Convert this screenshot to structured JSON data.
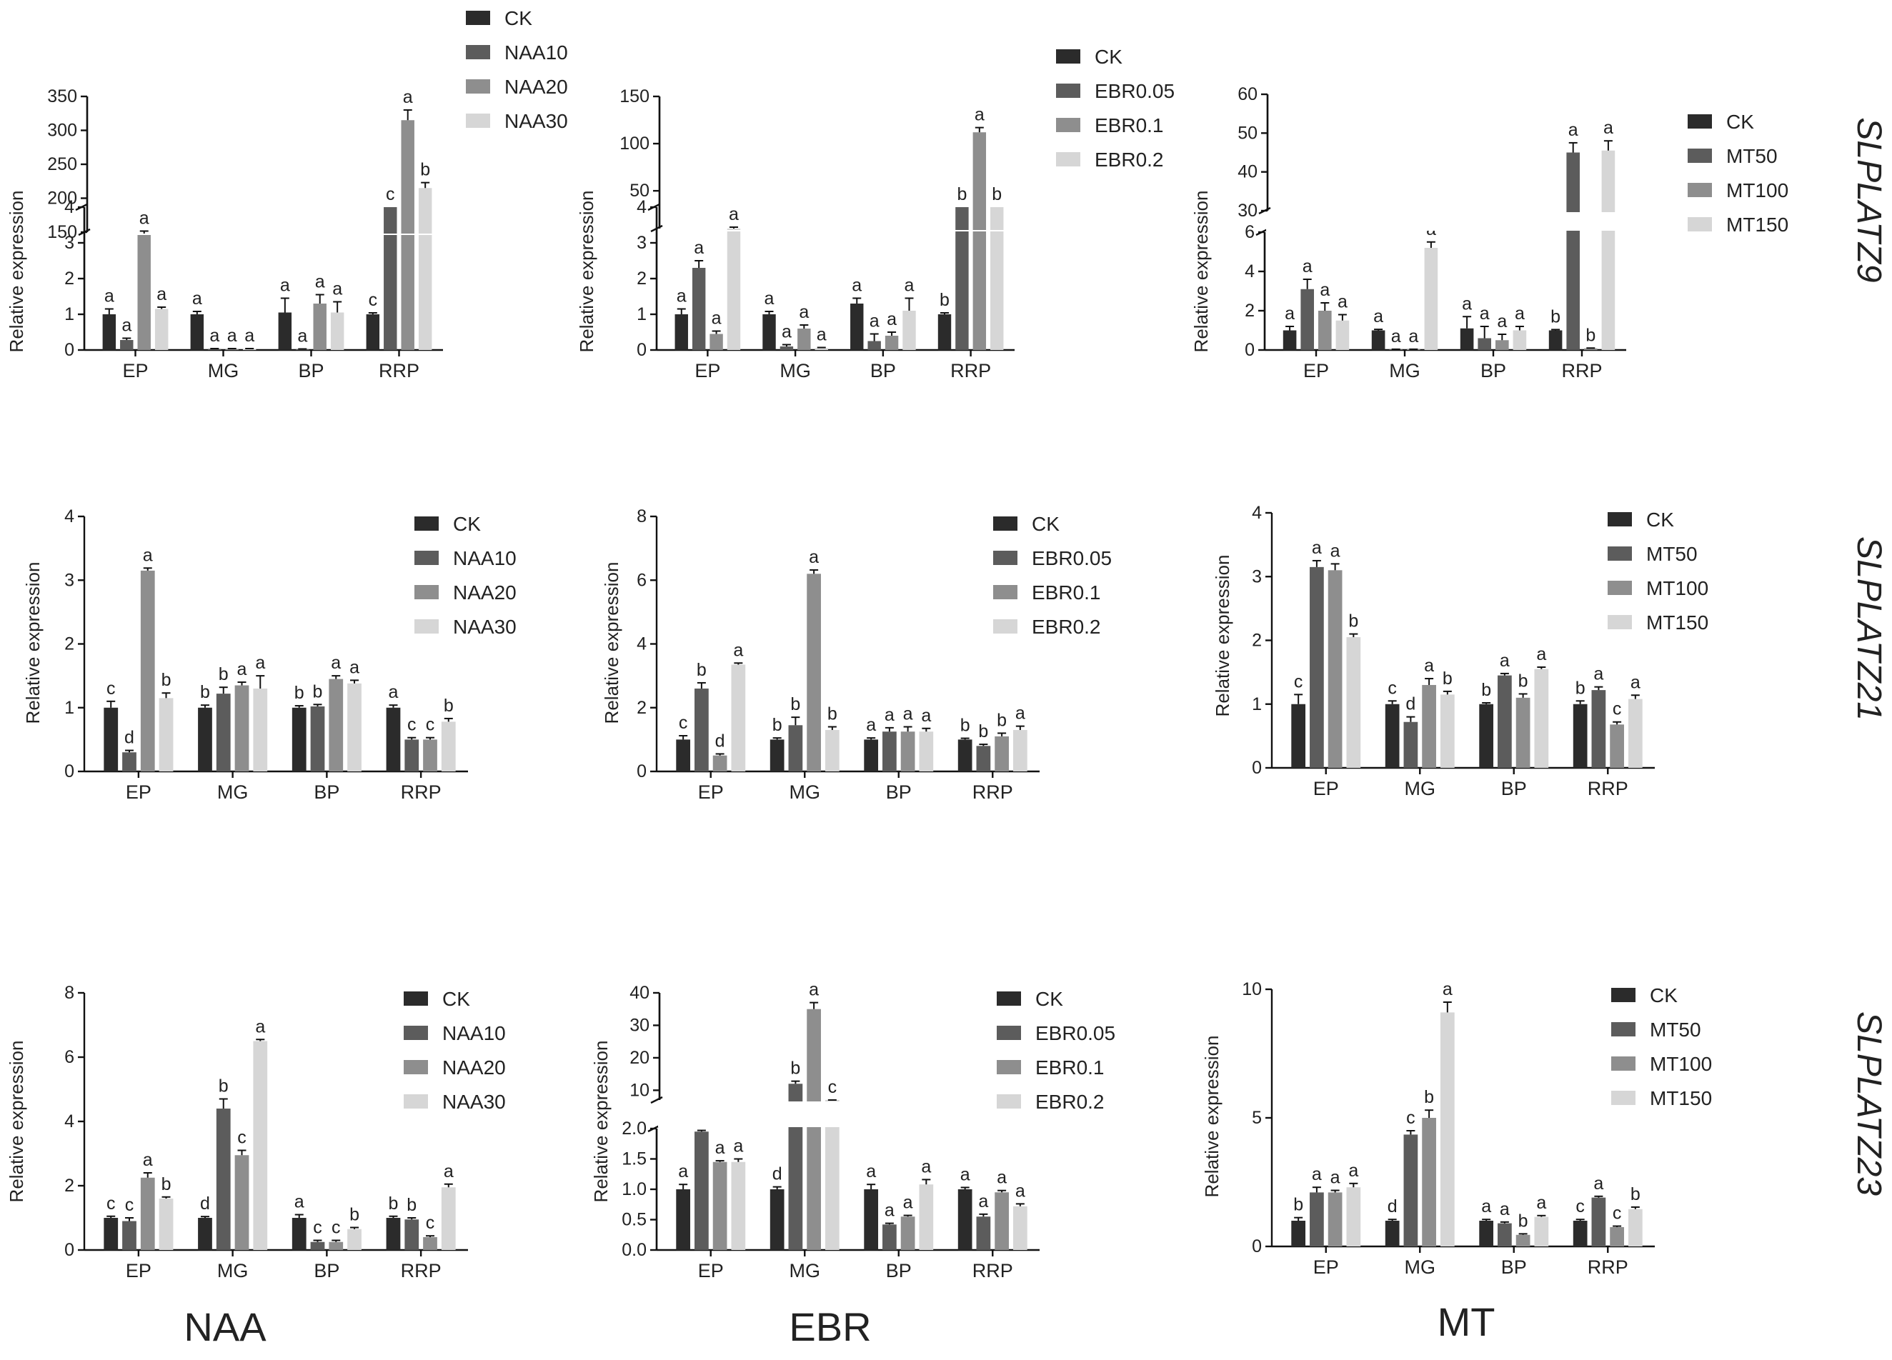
{
  "figure": {
    "column_titles": [
      "NAA",
      "EBR",
      "MT"
    ],
    "row_titles": [
      "SLPLATZ9",
      "SLPLATZ21",
      "SLPLATZ23"
    ]
  },
  "colors": {
    "series": [
      "#2b2b2b",
      "#5c5c5c",
      "#8e8e8e",
      "#d6d6d6"
    ],
    "axis": "#111111",
    "text": "#222222"
  },
  "chart_data": [
    {
      "type": "bar",
      "gene": "SLPLATZ9",
      "treatment": "NAA",
      "categories": [
        "EP",
        "MG",
        "BP",
        "RRP"
      ],
      "ylabel": "Relative expression",
      "legend": [
        "CK",
        "NAA10",
        "NAA20",
        "NAA30"
      ],
      "axis_break": true,
      "lower_ylim": [
        0,
        4
      ],
      "lower_ticks": [
        "0",
        "1",
        "2",
        "3",
        "4"
      ],
      "upper_ylim": [
        150,
        350
      ],
      "upper_ticks": [
        "150",
        "200",
        "250",
        "300",
        "350"
      ],
      "series": [
        {
          "name": "CK",
          "values": [
            1.0,
            1.0,
            1.05,
            1.0
          ],
          "errors": [
            0.15,
            0.08,
            0.4,
            0.04
          ],
          "letters": [
            "a",
            "a",
            "a",
            "c"
          ]
        },
        {
          "name": "NAA10",
          "values": [
            0.28,
            0.03,
            0.02,
            4
          ],
          "errors": [
            0.05,
            0.01,
            0.01,
            0
          ],
          "letters": [
            "a",
            "a",
            "a",
            "c"
          ]
        },
        {
          "name": "NAA20",
          "values": [
            3.25,
            0.03,
            1.3,
            315
          ],
          "errors": [
            0.08,
            0.01,
            0.25,
            15
          ],
          "letters": [
            "a",
            "a",
            "a",
            "a"
          ]
        },
        {
          "name": "NAA30",
          "values": [
            1.15,
            0.03,
            1.05,
            215
          ],
          "errors": [
            0.05,
            0.01,
            0.3,
            8
          ],
          "letters": [
            "a",
            "a",
            "a",
            "b"
          ]
        }
      ]
    },
    {
      "type": "bar",
      "gene": "SLPLATZ9",
      "treatment": "EBR",
      "categories": [
        "EP",
        "MG",
        "BP",
        "RRP"
      ],
      "ylabel": "Relative expression",
      "legend": [
        "CK",
        "EBR0.05",
        "EBR0.1",
        "EBR0.2"
      ],
      "axis_break": true,
      "lower_ylim": [
        0,
        4
      ],
      "lower_ticks": [
        "0",
        "1",
        "2",
        "3",
        "4"
      ],
      "upper_ylim": [
        10,
        150
      ],
      "upper_ticks": [
        "50",
        "100",
        "150"
      ],
      "series": [
        {
          "name": "CK",
          "values": [
            1.0,
            1.0,
            1.3,
            1.0
          ],
          "errors": [
            0.15,
            0.08,
            0.15,
            0.04
          ],
          "letters": [
            "a",
            "a",
            "a",
            "b"
          ]
        },
        {
          "name": "EBR0.05",
          "values": [
            2.3,
            0.1,
            0.25,
            4
          ],
          "errors": [
            0.2,
            0.05,
            0.2,
            0
          ],
          "letters": [
            "a",
            "a",
            "a",
            "b"
          ]
        },
        {
          "name": "EBR0.1",
          "values": [
            0.45,
            0.6,
            0.4,
            112
          ],
          "errors": [
            0.08,
            0.1,
            0.1,
            5
          ],
          "letters": [
            "a",
            "a",
            "a",
            "a"
          ]
        },
        {
          "name": "EBR0.2",
          "values": [
            3.4,
            0.05,
            1.1,
            4
          ],
          "errors": [
            0.04,
            0.02,
            0.35,
            0
          ],
          "letters": [
            "a",
            "a",
            "a",
            "b"
          ]
        }
      ]
    },
    {
      "type": "bar",
      "gene": "SLPLATZ9",
      "treatment": "MT",
      "categories": [
        "EP",
        "MG",
        "BP",
        "RRP"
      ],
      "ylabel": "Relative expression",
      "legend": [
        "CK",
        "MT50",
        "MT100",
        "MT150"
      ],
      "axis_break": true,
      "lower_ylim": [
        0,
        6
      ],
      "lower_ticks": [
        "0",
        "2",
        "4",
        "6"
      ],
      "upper_ylim": [
        30,
        60
      ],
      "upper_ticks": [
        "30",
        "40",
        "50",
        "60"
      ],
      "series": [
        {
          "name": "CK",
          "values": [
            1.0,
            1.0,
            1.1,
            1.0
          ],
          "errors": [
            0.2,
            0.05,
            0.6,
            0.04
          ],
          "letters": [
            "a",
            "a",
            "a",
            "b"
          ]
        },
        {
          "name": "MT50",
          "values": [
            3.1,
            0.03,
            0.6,
            45
          ],
          "errors": [
            0.5,
            0.01,
            0.6,
            2.5
          ],
          "letters": [
            "a",
            "a",
            "a",
            "a"
          ]
        },
        {
          "name": "MT100",
          "values": [
            2.0,
            0.03,
            0.5,
            0.08
          ],
          "errors": [
            0.4,
            0.01,
            0.3,
            0.02
          ],
          "letters": [
            "a",
            "a",
            "a",
            "b"
          ]
        },
        {
          "name": "MT150",
          "values": [
            1.5,
            5.2,
            1.0,
            45.5
          ],
          "errors": [
            0.3,
            0.3,
            0.2,
            2.5
          ],
          "letters": [
            "a",
            "a",
            "a",
            "a"
          ]
        }
      ]
    },
    {
      "type": "bar",
      "gene": "SLPLATZ21",
      "treatment": "NAA",
      "categories": [
        "EP",
        "MG",
        "BP",
        "RRP"
      ],
      "ylabel": "Relative expression",
      "legend": [
        "CK",
        "NAA10",
        "NAA20",
        "NAA30"
      ],
      "axis_break": false,
      "ylim": [
        0,
        4
      ],
      "yticks": [
        "0",
        "1",
        "2",
        "3",
        "4"
      ],
      "series": [
        {
          "name": "CK",
          "values": [
            1.0,
            1.0,
            1.0,
            1.0
          ],
          "errors": [
            0.1,
            0.04,
            0.03,
            0.04
          ],
          "letters": [
            "c",
            "b",
            "b",
            "a"
          ]
        },
        {
          "name": "NAA10",
          "values": [
            0.3,
            1.22,
            1.02,
            0.5
          ],
          "errors": [
            0.03,
            0.1,
            0.03,
            0.03
          ],
          "letters": [
            "d",
            "b",
            "b",
            "c"
          ]
        },
        {
          "name": "NAA20",
          "values": [
            3.15,
            1.35,
            1.45,
            0.5
          ],
          "errors": [
            0.04,
            0.05,
            0.05,
            0.03
          ],
          "letters": [
            "a",
            "a",
            "a",
            "c"
          ]
        },
        {
          "name": "NAA30",
          "values": [
            1.15,
            1.3,
            1.38,
            0.78
          ],
          "errors": [
            0.08,
            0.2,
            0.05,
            0.05
          ],
          "letters": [
            "b",
            "a",
            "a",
            "b"
          ]
        }
      ]
    },
    {
      "type": "bar",
      "gene": "SLPLATZ21",
      "treatment": "EBR",
      "categories": [
        "EP",
        "MG",
        "BP",
        "RRP"
      ],
      "ylabel": "Relative expression",
      "legend": [
        "CK",
        "EBR0.05",
        "EBR0.1",
        "EBR0.2"
      ],
      "axis_break": false,
      "ylim": [
        0,
        8
      ],
      "yticks": [
        "0",
        "2",
        "4",
        "6",
        "8"
      ],
      "series": [
        {
          "name": "CK",
          "values": [
            1.0,
            1.0,
            1.0,
            1.0
          ],
          "errors": [
            0.12,
            0.05,
            0.05,
            0.04
          ],
          "letters": [
            "c",
            "b",
            "a",
            "b"
          ]
        },
        {
          "name": "EBR0.05",
          "values": [
            2.6,
            1.45,
            1.25,
            0.8
          ],
          "errors": [
            0.18,
            0.25,
            0.12,
            0.05
          ],
          "letters": [
            "b",
            "b",
            "a",
            "b"
          ]
        },
        {
          "name": "EBR0.1",
          "values": [
            0.5,
            6.2,
            1.25,
            1.1
          ],
          "errors": [
            0.05,
            0.12,
            0.15,
            0.1
          ],
          "letters": [
            "d",
            "a",
            "a",
            "b"
          ]
        },
        {
          "name": "EBR0.2",
          "values": [
            3.35,
            1.3,
            1.25,
            1.3
          ],
          "errors": [
            0.05,
            0.1,
            0.1,
            0.12
          ],
          "letters": [
            "a",
            "b",
            "a",
            "a"
          ]
        }
      ]
    },
    {
      "type": "bar",
      "gene": "SLPLATZ21",
      "treatment": "MT",
      "categories": [
        "EP",
        "MG",
        "BP",
        "RRP"
      ],
      "ylabel": "Relative expression",
      "legend": [
        "CK",
        "MT50",
        "MT100",
        "MT150"
      ],
      "axis_break": false,
      "ylim": [
        0,
        4
      ],
      "yticks": [
        "0",
        "1",
        "2",
        "3",
        "4"
      ],
      "series": [
        {
          "name": "CK",
          "values": [
            1.0,
            1.0,
            1.0,
            1.0
          ],
          "errors": [
            0.15,
            0.05,
            0.02,
            0.05
          ],
          "letters": [
            "c",
            "c",
            "b",
            "b"
          ]
        },
        {
          "name": "MT50",
          "values": [
            3.15,
            0.72,
            1.45,
            1.22
          ],
          "errors": [
            0.1,
            0.08,
            0.03,
            0.05
          ],
          "letters": [
            "a",
            "d",
            "a",
            "a"
          ]
        },
        {
          "name": "MT100",
          "values": [
            3.1,
            1.3,
            1.1,
            0.68
          ],
          "errors": [
            0.1,
            0.1,
            0.06,
            0.04
          ],
          "letters": [
            "a",
            "a",
            "b",
            "c"
          ]
        },
        {
          "name": "MT150",
          "values": [
            2.05,
            1.15,
            1.55,
            1.08
          ],
          "errors": [
            0.05,
            0.05,
            0.03,
            0.06
          ],
          "letters": [
            "b",
            "b",
            "a",
            "a"
          ]
        }
      ]
    },
    {
      "type": "bar",
      "gene": "SLPLATZ23",
      "treatment": "NAA",
      "categories": [
        "EP",
        "MG",
        "BP",
        "RRP"
      ],
      "ylabel": "Relative expression",
      "legend": [
        "CK",
        "NAA10",
        "NAA20",
        "NAA30"
      ],
      "axis_break": false,
      "ylim": [
        0,
        8
      ],
      "yticks": [
        "0",
        "2",
        "4",
        "6",
        "8"
      ],
      "series": [
        {
          "name": "CK",
          "values": [
            1.0,
            1.0,
            1.0,
            1.0
          ],
          "errors": [
            0.05,
            0.04,
            0.1,
            0.05
          ],
          "letters": [
            "c",
            "d",
            "a",
            "b"
          ]
        },
        {
          "name": "NAA10",
          "values": [
            0.9,
            4.4,
            0.25,
            0.95
          ],
          "errors": [
            0.1,
            0.3,
            0.05,
            0.05
          ],
          "letters": [
            "c",
            "b",
            "c",
            "b"
          ]
        },
        {
          "name": "NAA20",
          "values": [
            2.25,
            2.95,
            0.25,
            0.4
          ],
          "errors": [
            0.15,
            0.15,
            0.05,
            0.04
          ],
          "letters": [
            "a",
            "c",
            "c",
            "c"
          ]
        },
        {
          "name": "NAA30",
          "values": [
            1.6,
            6.5,
            0.65,
            1.95
          ],
          "errors": [
            0.05,
            0.05,
            0.05,
            0.1
          ],
          "letters": [
            "b",
            "a",
            "b",
            "a"
          ]
        }
      ]
    },
    {
      "type": "bar",
      "gene": "SLPLATZ23",
      "treatment": "EBR",
      "categories": [
        "EP",
        "MG",
        "BP",
        "RRP"
      ],
      "ylabel": "Relative expression",
      "legend": [
        "CK",
        "EBR0.05",
        "EBR0.1",
        "EBR0.2"
      ],
      "axis_break": true,
      "lower_ylim": [
        0,
        2
      ],
      "lower_ticks": [
        "0.0",
        "0.5",
        "1.0",
        "1.5",
        "2.0"
      ],
      "upper_ylim": [
        7,
        40
      ],
      "upper_ticks": [
        "10",
        "20",
        "30",
        "40"
      ],
      "series": [
        {
          "name": "CK",
          "values": [
            1.0,
            1.0,
            1.0,
            1.0
          ],
          "errors": [
            0.08,
            0.04,
            0.08,
            0.03
          ],
          "letters": [
            "a",
            "d",
            "a",
            "a"
          ]
        },
        {
          "name": "EBR0.05",
          "values": [
            1.95,
            12,
            0.42,
            0.55
          ],
          "errors": [
            0.02,
            0.8,
            0.02,
            0.04
          ],
          "letters": [
            "a",
            "b",
            "a",
            "a"
          ]
        },
        {
          "name": "EBR0.1",
          "values": [
            1.45,
            35,
            0.55,
            0.95
          ],
          "errors": [
            0.02,
            2,
            0.02,
            0.03
          ],
          "letters": [
            "a",
            "a",
            "a",
            "a"
          ]
        },
        {
          "name": "EBR0.2",
          "values": [
            1.45,
            6.2,
            1.08,
            0.72
          ],
          "errors": [
            0.05,
            0.3,
            0.08,
            0.04
          ],
          "letters": [
            "a",
            "c",
            "a",
            "a"
          ]
        }
      ]
    },
    {
      "type": "bar",
      "gene": "SLPLATZ23",
      "treatment": "MT",
      "categories": [
        "EP",
        "MG",
        "BP",
        "RRP"
      ],
      "ylabel": "Relative expression",
      "legend": [
        "CK",
        "MT50",
        "MT100",
        "MT150"
      ],
      "axis_break": false,
      "ylim": [
        0,
        10
      ],
      "yticks": [
        "0",
        "5",
        "10"
      ],
      "series": [
        {
          "name": "CK",
          "values": [
            1.0,
            1.0,
            1.0,
            1.0
          ],
          "errors": [
            0.12,
            0.05,
            0.05,
            0.05
          ],
          "letters": [
            "b",
            "d",
            "a",
            "c"
          ]
        },
        {
          "name": "MT50",
          "values": [
            2.1,
            4.35,
            0.9,
            1.9
          ],
          "errors": [
            0.2,
            0.15,
            0.05,
            0.05
          ],
          "letters": [
            "a",
            "c",
            "a",
            "a"
          ]
        },
        {
          "name": "MT100",
          "values": [
            2.1,
            5.0,
            0.45,
            0.75
          ],
          "errors": [
            0.08,
            0.3,
            0.04,
            0.04
          ],
          "letters": [
            "a",
            "b",
            "b",
            "c"
          ]
        },
        {
          "name": "MT150",
          "values": [
            2.3,
            9.1,
            1.15,
            1.45
          ],
          "errors": [
            0.15,
            0.4,
            0.05,
            0.08
          ],
          "letters": [
            "a",
            "a",
            "a",
            "b"
          ]
        }
      ]
    }
  ]
}
